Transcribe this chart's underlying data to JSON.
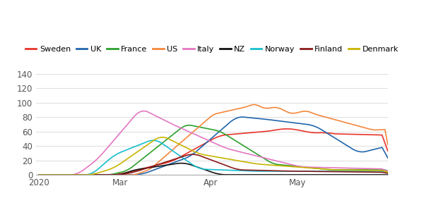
{
  "countries": [
    "Sweden",
    "UK",
    "France",
    "US",
    "Italy",
    "NZ",
    "Norway",
    "Finland",
    "Denmark"
  ],
  "colors": [
    "#e8342a",
    "#2166ac",
    "#2ca02c",
    "#f4873c",
    "#e377c2",
    "#111111",
    "#17becf",
    "#8b1a1a",
    "#c8b400"
  ],
  "ylim": [
    0,
    145
  ],
  "yticks": [
    0,
    20,
    40,
    60,
    80,
    100,
    120,
    140
  ],
  "background_color": "#ffffff",
  "grid_color": "#e0e0e0",
  "n_days": 121
}
